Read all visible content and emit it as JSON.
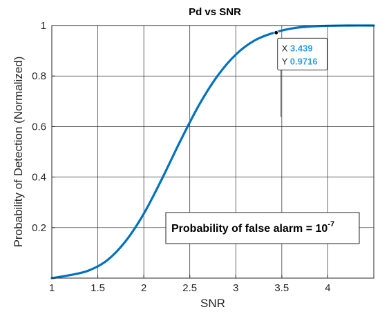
{
  "chart_data": {
    "type": "line",
    "title": "Pd vs SNR",
    "xlabel": "SNR",
    "ylabel": "Probability of Detection (Normalized)",
    "xlim": [
      1,
      4.5
    ],
    "ylim": [
      0,
      1
    ],
    "xticks": [
      "1",
      "1.5",
      "2",
      "2.5",
      "3",
      "3.5",
      "4"
    ],
    "yticks": [
      "0.2",
      "0.4",
      "0.6",
      "0.8",
      "1"
    ],
    "grid": true,
    "series": [
      {
        "color": "#0072BD",
        "x": [
          1.0,
          1.2,
          1.4,
          1.6,
          1.8,
          2.0,
          2.2,
          2.4,
          2.6,
          2.8,
          3.0,
          3.2,
          3.4,
          3.6,
          3.8,
          4.0,
          4.2,
          4.5
        ],
        "y": [
          0.0,
          0.012,
          0.03,
          0.07,
          0.145,
          0.255,
          0.395,
          0.545,
          0.685,
          0.8,
          0.885,
          0.94,
          0.97,
          0.988,
          0.996,
          0.999,
          1.0,
          1.0
        ]
      }
    ],
    "datatip": {
      "x": 3.439,
      "y": 0.9716,
      "x_label": "X",
      "y_label": "Y",
      "x_text": "3.439",
      "y_text": "0.9716",
      "value_color": "#2E9CE6"
    },
    "annotation": {
      "text": "Probability of false alarm = 10",
      "superscript": "-7"
    }
  }
}
